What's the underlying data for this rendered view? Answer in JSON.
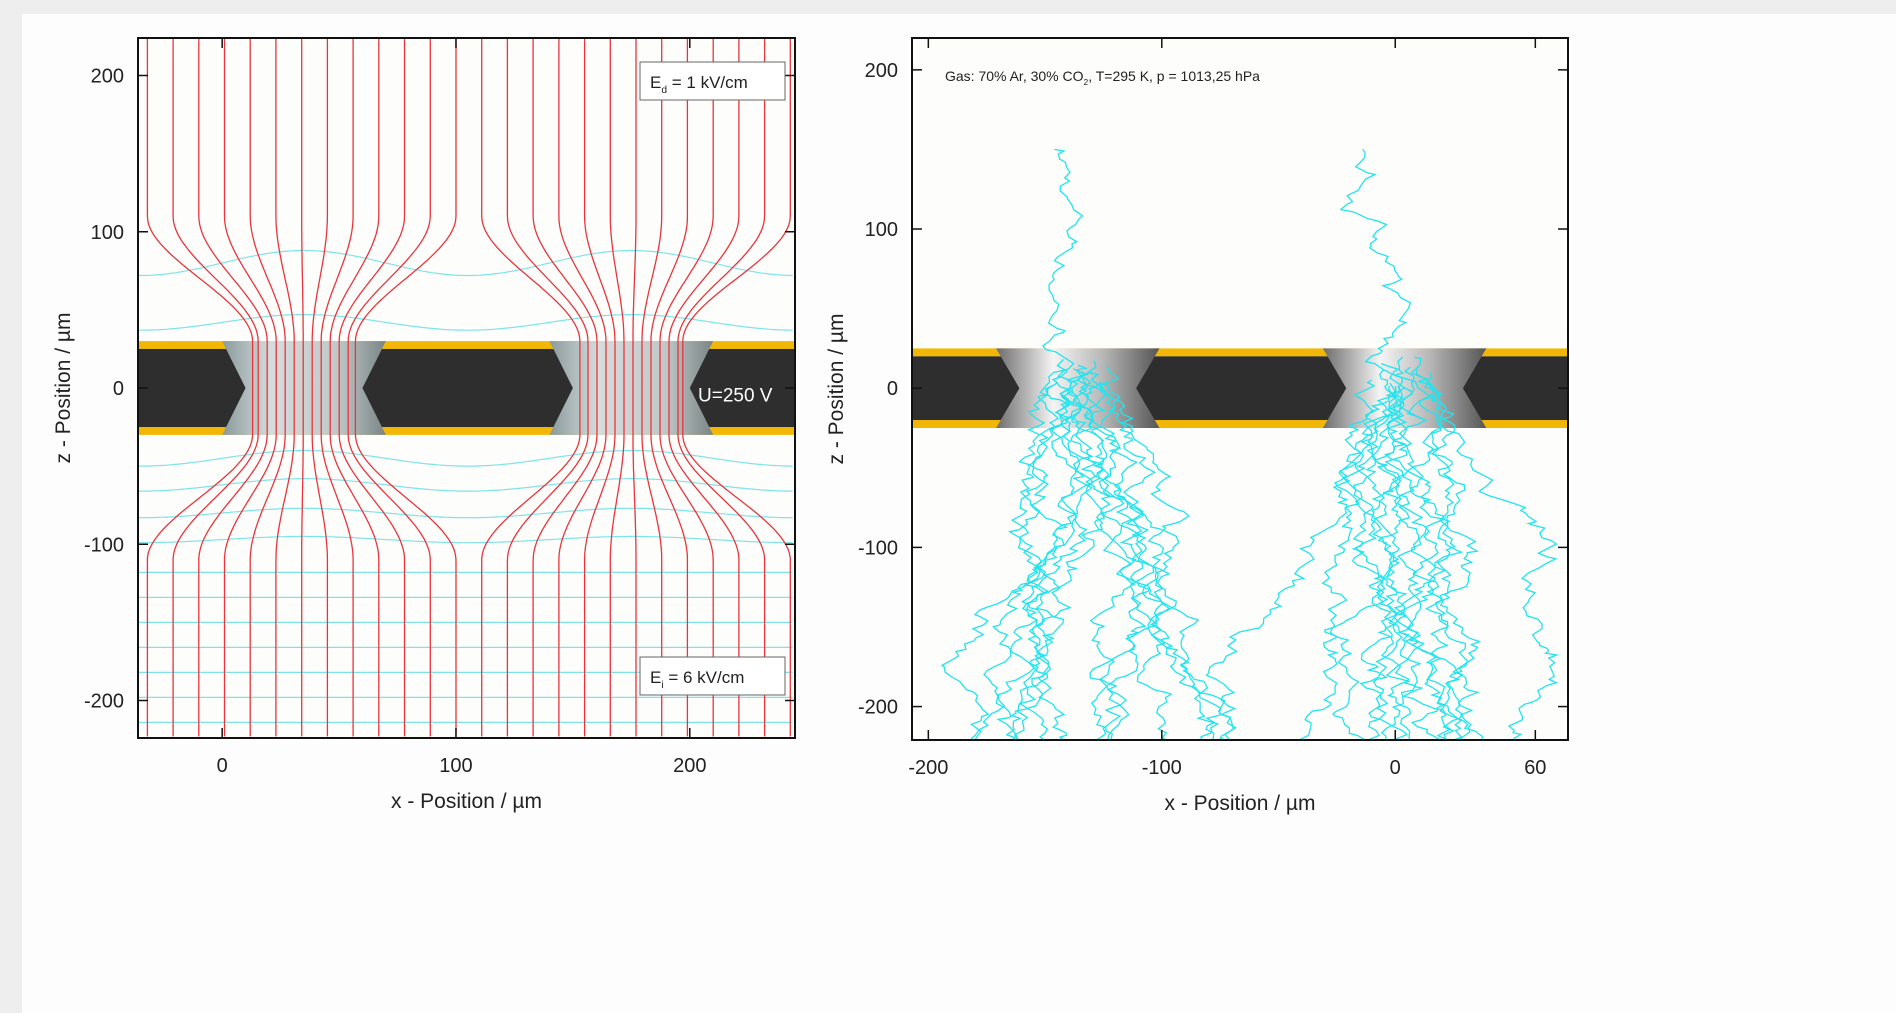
{
  "chart_data": [
    {
      "type": "field-map",
      "xlabel": "x - Position / µm",
      "ylabel": "z - Position / µm",
      "xlim": [
        -36,
        245
      ],
      "ylim": [
        -224,
        224
      ],
      "xticks": [
        0,
        100,
        200
      ],
      "yticks": [
        -200,
        -100,
        0,
        100,
        200
      ],
      "annotations": [
        {
          "text": "E",
          "sub": "d",
          "after": " = 1 kV/cm"
        },
        {
          "text": "U=250 V"
        },
        {
          "text": "E",
          "sub": "i",
          "after": " = 6 kV/cm"
        }
      ],
      "holes": [
        35,
        175
      ],
      "hole_diameters": [
        70,
        50
      ],
      "kapton": 25,
      "copper": 30,
      "colors": {
        "field": "#e8353c",
        "potential": "#7fe3ea"
      }
    },
    {
      "type": "drift-map",
      "xlabel": "x - Position / µm",
      "ylabel": "z - Position / µm",
      "xlim": [
        -207,
        74
      ],
      "ylim": [
        -221,
        220
      ],
      "xticks": [
        -200,
        -100,
        0,
        60
      ],
      "yticks": [
        -200,
        -100,
        0,
        100,
        200
      ],
      "annotations": [
        {
          "text": "Gas: 70% Ar, 30% CO",
          "sub": "2",
          "after": ", T=295 K, p = 1013,25 hPa"
        }
      ],
      "holes": [
        -136,
        4
      ],
      "hole_diameters": [
        70,
        50
      ],
      "kapton": 20,
      "copper": 25,
      "colors": {
        "drift": "#22e4ee"
      }
    }
  ]
}
